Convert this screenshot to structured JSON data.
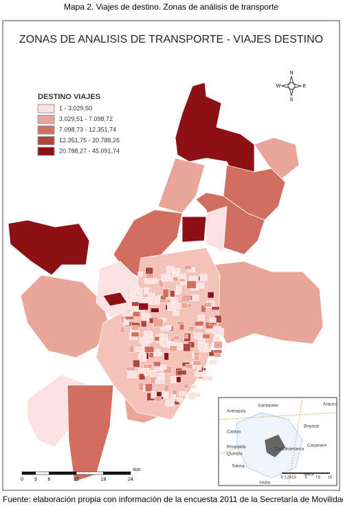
{
  "caption": "Mapa 2. Viajes de destino. Zonas de análisis de transporte",
  "map": {
    "title": "ZONAS DE ANALISIS DE TRANSPORTE - VIAJES DESTINO",
    "legend": {
      "title": "DESTINO VIAJES",
      "items": [
        {
          "label": "1 - 3.029,50",
          "color": "#fbe1df"
        },
        {
          "label": "3.029,51 - 7.098,72",
          "color": "#e9a598"
        },
        {
          "label": "7.098,73 - 12.351,74",
          "color": "#d06f60"
        },
        {
          "label": "12.351,75 - 20.788,26",
          "color": "#b0453e"
        },
        {
          "label": "20.788,27 - 45.091,74",
          "color": "#8c1014"
        }
      ]
    },
    "compass": {
      "n": "N",
      "s": "S",
      "e": "E",
      "w": "W"
    },
    "scale_bar": {
      "ticks": [
        0,
        3,
        6,
        12,
        18,
        24
      ],
      "unit": "Km"
    },
    "inset": {
      "labels": [
        "Antioquia",
        "Santander",
        "Arauca",
        "Boyacá",
        "Caldas",
        "Casanare",
        "Risaralda",
        "Quindío",
        "Cundinamarca",
        "Tolima",
        "Meta",
        "Huila"
      ],
      "scale_ticks": [
        {
          "value": 0,
          "label": "0"
        },
        {
          "value": 1.25,
          "label": "1,25"
        },
        {
          "value": 2.5,
          "label": "2,5"
        },
        {
          "value": 5,
          "label": "5"
        },
        {
          "value": 7.5,
          "label": "7,5"
        },
        {
          "value": 10,
          "label": "10"
        }
      ]
    }
  },
  "source": "Fuente: elaboración propia con información de la encuesta 2011 de la Secretaría de Movilidad"
}
